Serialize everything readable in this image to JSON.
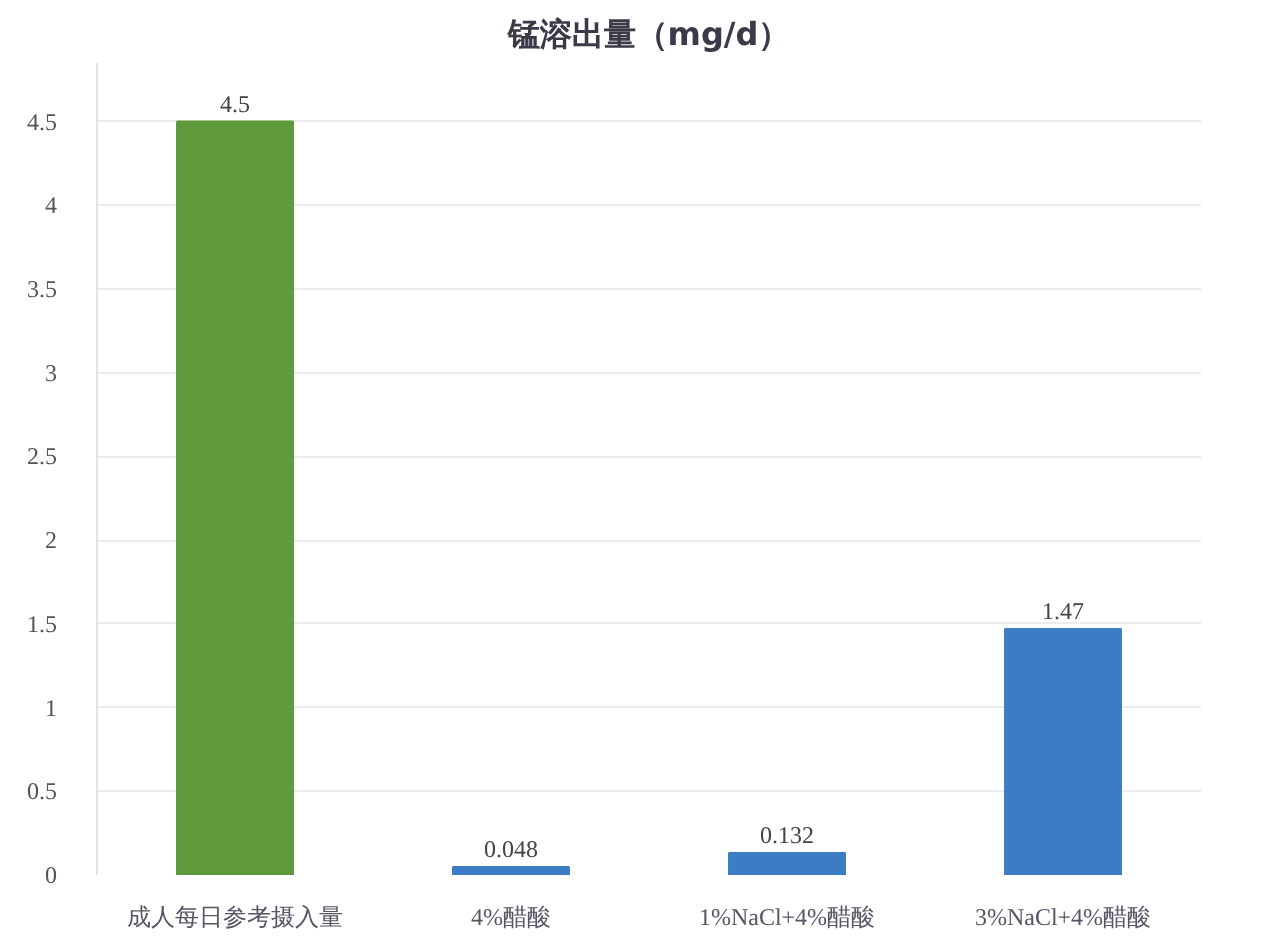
{
  "chart_data": {
    "type": "bar",
    "title": "锰溶出量（mg/d）",
    "categories": [
      "成人每日参考摄入量",
      "4%醋酸",
      "1%NaCl+4%醋酸",
      "3%NaCl+4%醋酸"
    ],
    "values": [
      4.5,
      0.048,
      0.132,
      1.47
    ],
    "colors": [
      "#5e9a3c",
      "#3c7cc4",
      "#3c7cc4",
      "#3c7cc4"
    ],
    "ylim": [
      0,
      4.85
    ],
    "yticks": [
      0,
      0.5,
      1,
      1.5,
      2,
      2.5,
      3,
      3.5,
      4,
      4.5
    ],
    "grid": "y",
    "data_labels": true
  }
}
